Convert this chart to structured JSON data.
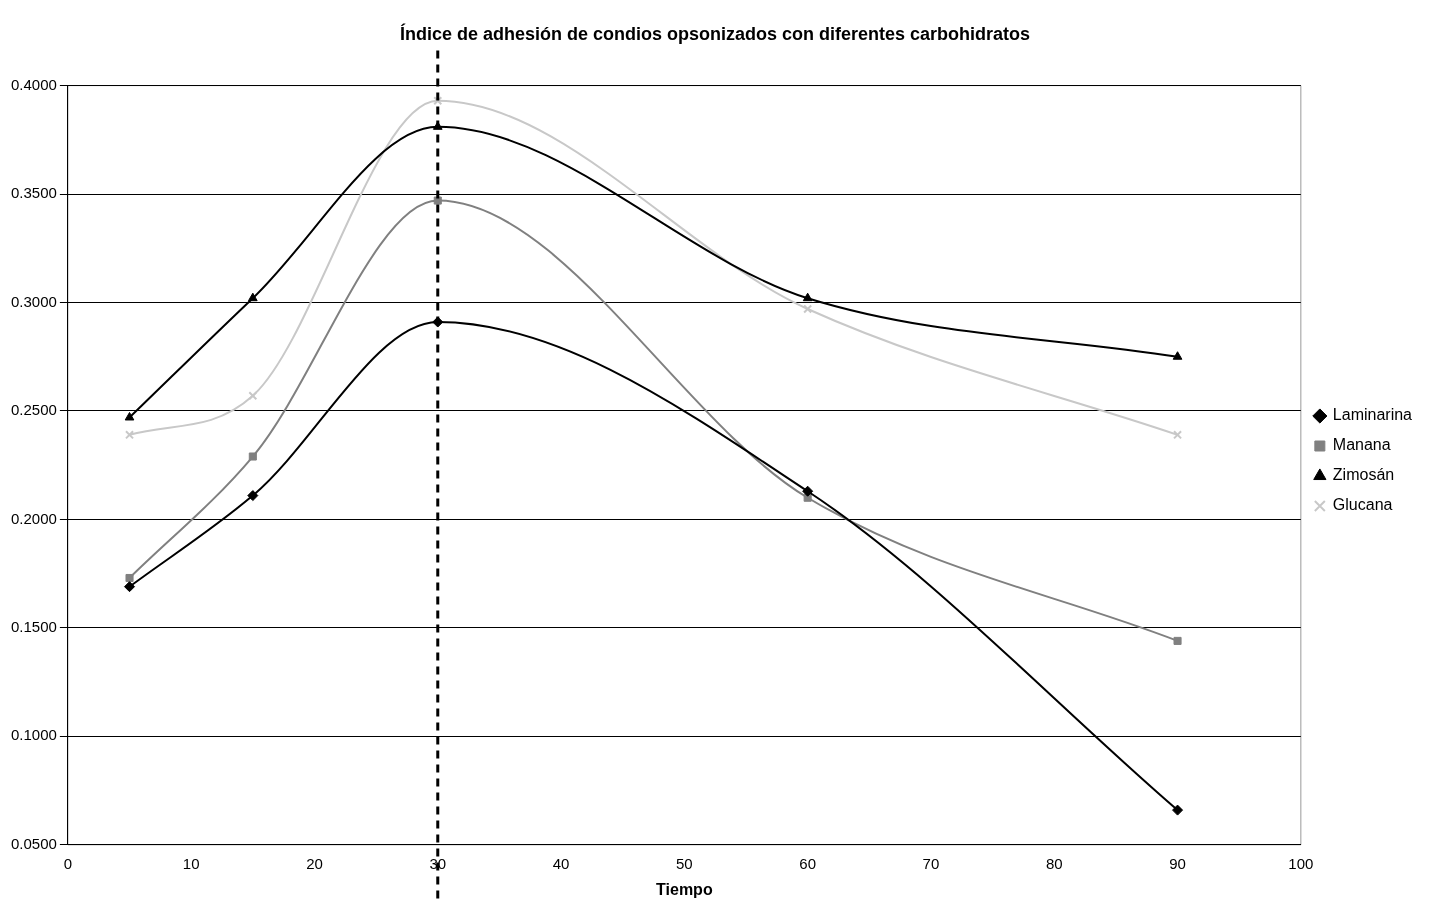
{
  "chart_data": {
    "type": "line",
    "title": "Índice de adhesión de condios opsonizados con diferentes carbohidratos",
    "xlabel": "Tiempo",
    "x": [
      5,
      15,
      30,
      60,
      90
    ],
    "series": [
      {
        "name": "Laminarina",
        "color": "#000000",
        "marker": "diamond",
        "values": [
          0.169,
          0.211,
          0.291,
          0.213,
          0.066
        ]
      },
      {
        "name": "Manana",
        "color": "#808080",
        "marker": "square",
        "values": [
          0.173,
          0.229,
          0.347,
          0.21,
          0.144
        ]
      },
      {
        "name": "Zimosán",
        "color": "#000000",
        "marker": "triangle",
        "values": [
          0.247,
          0.302,
          0.381,
          0.302,
          0.275
        ]
      },
      {
        "name": "Glucana",
        "color": "#c8c8c8",
        "marker": "cross",
        "values": [
          0.239,
          0.257,
          0.393,
          0.297,
          0.239
        ]
      }
    ],
    "xlim": [
      0,
      100
    ],
    "xticks": [
      0,
      10,
      20,
      30,
      40,
      50,
      60,
      70,
      80,
      90,
      100
    ],
    "ylim": [
      0.05,
      0.4
    ],
    "yticks": [
      {
        "value": 0.05,
        "label": "0.0500"
      },
      {
        "value": 0.1,
        "label": "0.1000"
      },
      {
        "value": 0.15,
        "label": "0.1500"
      },
      {
        "value": 0.2,
        "label": "0.2000"
      },
      {
        "value": 0.25,
        "label": "0.2500"
      },
      {
        "value": 0.3,
        "label": "0.3000"
      },
      {
        "value": 0.35,
        "label": "0.3500"
      },
      {
        "value": 0.4,
        "label": "0.4000"
      }
    ],
    "ref_lines": [
      {
        "axis": "x",
        "value": 30,
        "color": "#000000",
        "line_style": "dashed"
      }
    ],
    "grid": "y",
    "legend": "right"
  }
}
